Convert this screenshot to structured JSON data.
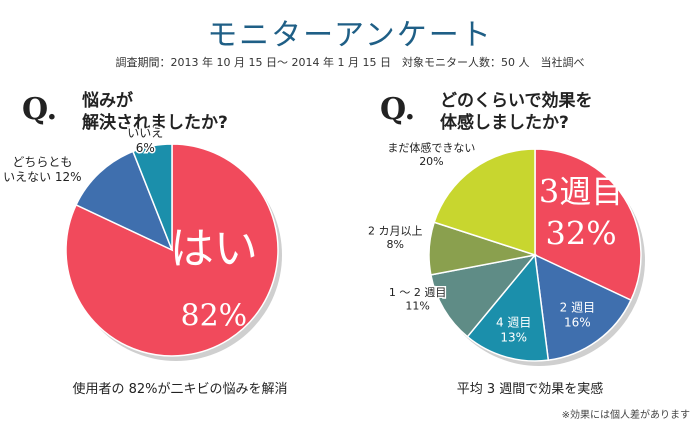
{
  "title": "モニターアンケート",
  "subtitle": "調査期間：2013 年 10 月 15 日～ 2014 年 1 月 15 日　対象モニター人数：50 人　当社調べ",
  "left": {
    "q_mark": "Q.",
    "q_line1": "悩みが",
    "q_line2": "解決されましたか?",
    "caption": "使用者の 82%が二キビの悩みを解消"
  },
  "right": {
    "q_mark": "Q.",
    "q_line1": "どのくらいで効果を",
    "q_line2": "体感しましたか?",
    "caption": "平均 3 週間で効果を実感"
  },
  "note": "※効果には個人差があります",
  "chart_data": [
    {
      "type": "pie",
      "title": "悩みが解決されましたか?",
      "slices": [
        {
          "label": "はい",
          "value": 82,
          "value_label": "82%",
          "color": "#f14a5c"
        },
        {
          "label": "どちらとも\nいえない",
          "value": 12,
          "value_label": "12%",
          "color": "#3f6fae"
        },
        {
          "label": "いいえ",
          "value": 6,
          "value_label": "6%",
          "color": "#1b8fab"
        }
      ]
    },
    {
      "type": "pie",
      "title": "どのくらいで効果を体感しましたか?",
      "slices": [
        {
          "label": "3週目",
          "value": 32,
          "value_label": "32%",
          "color": "#f14a5c"
        },
        {
          "label": "2 週目",
          "value": 16,
          "value_label": "16%",
          "color": "#3f6fae"
        },
        {
          "label": "4 週目",
          "value": 13,
          "value_label": "13%",
          "color": "#1b8fab"
        },
        {
          "label": "1 ～ 2 週目",
          "value": 11,
          "value_label": "11%",
          "color": "#5f8c86"
        },
        {
          "label": "2 カ月以上",
          "value": 8,
          "value_label": "8%",
          "color": "#8aa04e"
        },
        {
          "label": "まだ体感できない",
          "value": 20,
          "value_label": "20%",
          "color": "#c8d62f"
        }
      ]
    }
  ]
}
